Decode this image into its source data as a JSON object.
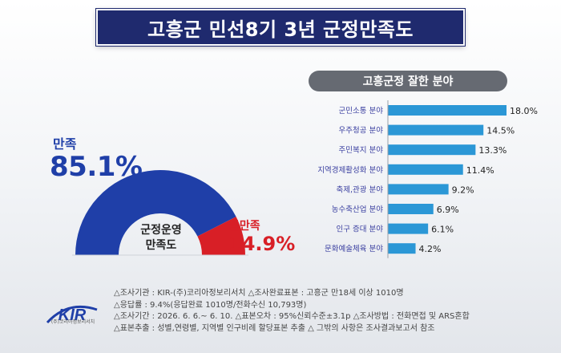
{
  "title": "고흥군 민선8기 3년 군정만족도",
  "satisfied": {
    "label": "만족",
    "value": "85.1%"
  },
  "dissatisfied": {
    "label": "불만족",
    "value": "14.9%"
  },
  "gauge_center": {
    "line1": "군정운영",
    "line2": "만족도"
  },
  "colors": {
    "navy": "#1f2a6e",
    "blue": "#1f3fa8",
    "red": "#d81f26",
    "bar": "#2b97d6",
    "header_gray": "#666a72"
  },
  "logo": {
    "text": "KIR",
    "subtitle": "(주)코리아정보리서치"
  },
  "footer": {
    "line1": "△조사기관 : KIR-(주)코리아정보리서치 △조사완료표본 : 고흥군 만18세 이상 1010명",
    "line2": "△응답률 : 9.4%(응답완료 1010명/전화수신 10,793명)",
    "line3": "△조사기간 : 2026. 6. 6.~ 6. 10. △표본오차 : 95%신뢰수준±3.1p △조사방법 : 전화면접 및 ARS혼합",
    "line4": "△표본추출 : 성별,연령별, 지역별 인구비례 할당표본 추출 △ 그밖의 사항은 조사결과보고서 참조"
  },
  "chart_data": [
    {
      "type": "pie",
      "subtype": "half-donut",
      "title": "",
      "labels": [
        "만족",
        "불만족"
      ],
      "values": [
        85.1,
        14.9
      ],
      "colors": [
        "#1f3fa8",
        "#d81f26"
      ]
    },
    {
      "type": "bar",
      "orientation": "horizontal",
      "title": "고흥군정 잘한 분야",
      "categories": [
        "군민소통 분야",
        "우주청공 분야",
        "주민복지 분야",
        "지역경제활성화 분야",
        "축제,관광 분야",
        "농수축산업 분야",
        "인구 증대 분야",
        "문화예술체육 분야"
      ],
      "values": [
        18.0,
        14.5,
        13.3,
        11.4,
        9.2,
        6.9,
        6.1,
        4.2
      ],
      "value_labels": [
        "18.0%",
        "14.5%",
        "13.3%",
        "11.4%",
        "9.2%",
        "6.9%",
        "6.1%",
        "4.2%"
      ],
      "xlim": [
        0,
        18.0
      ],
      "grid": false,
      "legend": "none"
    }
  ]
}
